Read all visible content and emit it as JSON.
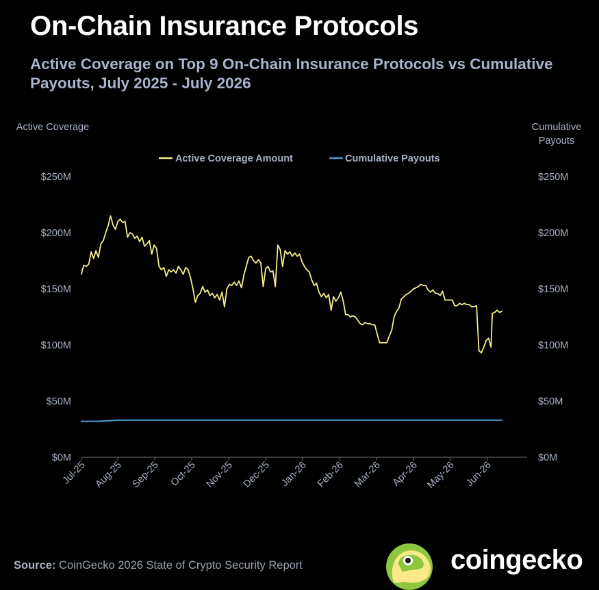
{
  "title": "On-Chain Insurance Protocols",
  "subtitle": "Active Coverage on Top 9 On-Chain Insurance Protocols vs Cumulative Payouts, July 2025 - July 2026",
  "colors": {
    "background": "#000000",
    "coverage": "#f4ef8c",
    "payouts": "#4b9bd5",
    "text_muted": "#a7b1c3"
  },
  "chart_data": {
    "type": "line",
    "title": "On-Chain Insurance Protocols",
    "subtitle": "Active Coverage on Top 9 On-Chain Insurance Protocols vs Cumulative Payouts, July 2025 - July 2026",
    "ylabel": "Active Coverage",
    "y2label": "Cumulative Payouts",
    "ylim": [
      0,
      250
    ],
    "y2lim": [
      0,
      250
    ],
    "yticks": [
      "$0M",
      "$50M",
      "$100M",
      "$150M",
      "$200M",
      "$250M"
    ],
    "y2ticks": [
      "$0M",
      "$50M",
      "$100M",
      "$150M",
      "$200M",
      "$250M"
    ],
    "xticks": [
      "Jul-25",
      "Aug-25",
      "Sep-25",
      "Oct-25",
      "Nov-25",
      "Dec-25",
      "Jan-26",
      "Feb-26",
      "Mar-26",
      "Apr-26",
      "May-26",
      "Jun-26"
    ],
    "grid": false,
    "legend": "top-center",
    "units": "USD millions",
    "series": [
      {
        "name": "Active Coverage Amount",
        "color": "#f4ef8c",
        "points": [
          [
            "2025-07-01",
            163
          ],
          [
            "2025-07-02",
            168
          ],
          [
            "2025-07-03",
            171
          ],
          [
            "2025-07-05",
            170
          ],
          [
            "2025-07-07",
            172
          ],
          [
            "2025-07-09",
            183
          ],
          [
            "2025-07-11",
            177
          ],
          [
            "2025-07-13",
            184
          ],
          [
            "2025-07-15",
            178
          ],
          [
            "2025-07-17",
            190
          ],
          [
            "2025-07-19",
            193
          ],
          [
            "2025-07-21",
            200
          ],
          [
            "2025-07-23",
            206
          ],
          [
            "2025-07-25",
            215
          ],
          [
            "2025-07-27",
            207
          ],
          [
            "2025-07-29",
            203
          ],
          [
            "2025-07-31",
            210
          ],
          [
            "2025-08-02",
            212
          ],
          [
            "2025-08-04",
            209
          ],
          [
            "2025-08-06",
            210
          ],
          [
            "2025-08-08",
            196
          ],
          [
            "2025-08-10",
            200
          ],
          [
            "2025-08-12",
            199
          ],
          [
            "2025-08-14",
            195
          ],
          [
            "2025-08-16",
            197
          ],
          [
            "2025-08-18",
            192
          ],
          [
            "2025-08-20",
            196
          ],
          [
            "2025-08-22",
            188
          ],
          [
            "2025-08-24",
            190
          ],
          [
            "2025-08-26",
            193
          ],
          [
            "2025-08-28",
            181
          ],
          [
            "2025-08-30",
            189
          ],
          [
            "2025-09-01",
            186
          ],
          [
            "2025-09-03",
            170
          ],
          [
            "2025-09-05",
            167
          ],
          [
            "2025-09-07",
            169
          ],
          [
            "2025-09-09",
            161
          ],
          [
            "2025-09-11",
            167
          ],
          [
            "2025-09-13",
            165
          ],
          [
            "2025-09-15",
            167
          ],
          [
            "2025-09-17",
            164
          ],
          [
            "2025-09-19",
            170
          ],
          [
            "2025-09-21",
            167
          ],
          [
            "2025-09-23",
            163
          ],
          [
            "2025-09-25",
            169
          ],
          [
            "2025-09-27",
            167
          ],
          [
            "2025-09-29",
            160
          ],
          [
            "2025-10-01",
            150
          ],
          [
            "2025-10-03",
            138
          ],
          [
            "2025-10-05",
            144
          ],
          [
            "2025-10-07",
            146
          ],
          [
            "2025-10-09",
            152
          ],
          [
            "2025-10-11",
            147
          ],
          [
            "2025-10-13",
            149
          ],
          [
            "2025-10-15",
            144
          ],
          [
            "2025-10-17",
            146
          ],
          [
            "2025-10-19",
            142
          ],
          [
            "2025-10-21",
            145
          ],
          [
            "2025-10-23",
            140
          ],
          [
            "2025-10-25",
            147
          ],
          [
            "2025-10-27",
            134
          ],
          [
            "2025-10-29",
            150
          ],
          [
            "2025-10-31",
            154
          ],
          [
            "2025-11-02",
            153
          ],
          [
            "2025-11-04",
            156
          ],
          [
            "2025-11-06",
            153
          ],
          [
            "2025-11-08",
            157
          ],
          [
            "2025-11-10",
            151
          ],
          [
            "2025-11-12",
            162
          ],
          [
            "2025-11-14",
            170
          ],
          [
            "2025-11-16",
            178
          ],
          [
            "2025-11-18",
            179
          ],
          [
            "2025-11-20",
            175
          ],
          [
            "2025-11-22",
            173
          ],
          [
            "2025-11-24",
            176
          ],
          [
            "2025-11-26",
            173
          ],
          [
            "2025-11-28",
            152
          ],
          [
            "2025-11-30",
            168
          ],
          [
            "2025-12-02",
            170
          ],
          [
            "2025-12-04",
            165
          ],
          [
            "2025-12-06",
            166
          ],
          [
            "2025-12-08",
            152
          ],
          [
            "2025-12-10",
            189
          ],
          [
            "2025-12-12",
            185
          ],
          [
            "2025-12-14",
            170
          ],
          [
            "2025-12-16",
            184
          ],
          [
            "2025-12-18",
            181
          ],
          [
            "2025-12-20",
            183
          ],
          [
            "2025-12-22",
            179
          ],
          [
            "2025-12-24",
            182
          ],
          [
            "2025-12-26",
            179
          ],
          [
            "2025-12-28",
            181
          ],
          [
            "2025-12-30",
            174
          ],
          [
            "2026-01-01",
            170
          ],
          [
            "2026-01-03",
            167
          ],
          [
            "2026-01-05",
            165
          ],
          [
            "2026-01-07",
            158
          ],
          [
            "2026-01-09",
            153
          ],
          [
            "2026-01-11",
            155
          ],
          [
            "2026-01-13",
            147
          ],
          [
            "2026-01-15",
            143
          ],
          [
            "2026-01-17",
            146
          ],
          [
            "2026-01-19",
            142
          ],
          [
            "2026-01-21",
            145
          ],
          [
            "2026-01-23",
            131
          ],
          [
            "2026-01-25",
            143
          ],
          [
            "2026-01-27",
            139
          ],
          [
            "2026-01-29",
            142
          ],
          [
            "2026-01-31",
            147
          ],
          [
            "2026-02-02",
            139
          ],
          [
            "2026-02-04",
            127
          ],
          [
            "2026-02-06",
            127
          ],
          [
            "2026-02-08",
            125
          ],
          [
            "2026-02-10",
            126
          ],
          [
            "2026-02-12",
            125
          ],
          [
            "2026-02-14",
            122
          ],
          [
            "2026-02-16",
            119
          ],
          [
            "2026-02-18",
            118
          ],
          [
            "2026-02-20",
            120
          ],
          [
            "2026-02-22",
            119
          ],
          [
            "2026-02-24",
            119
          ],
          [
            "2026-02-26",
            118
          ],
          [
            "2026-02-28",
            118
          ],
          [
            "2026-03-02",
            110
          ],
          [
            "2026-03-04",
            102
          ],
          [
            "2026-03-06",
            102
          ],
          [
            "2026-03-08",
            102
          ],
          [
            "2026-03-10",
            102
          ],
          [
            "2026-03-12",
            108
          ],
          [
            "2026-03-14",
            113
          ],
          [
            "2026-03-16",
            125
          ],
          [
            "2026-03-18",
            130
          ],
          [
            "2026-03-20",
            133
          ],
          [
            "2026-03-22",
            141
          ],
          [
            "2026-03-24",
            143
          ],
          [
            "2026-03-26",
            145
          ],
          [
            "2026-03-28",
            146
          ],
          [
            "2026-03-30",
            148
          ],
          [
            "2026-04-01",
            150
          ],
          [
            "2026-04-03",
            151
          ],
          [
            "2026-04-05",
            152
          ],
          [
            "2026-04-07",
            154
          ],
          [
            "2026-04-09",
            153
          ],
          [
            "2026-04-11",
            153
          ],
          [
            "2026-04-13",
            149
          ],
          [
            "2026-04-15",
            147
          ],
          [
            "2026-04-17",
            149
          ],
          [
            "2026-04-19",
            146
          ],
          [
            "2026-04-21",
            146
          ],
          [
            "2026-04-23",
            144
          ],
          [
            "2026-04-25",
            148
          ],
          [
            "2026-04-27",
            140
          ],
          [
            "2026-04-29",
            140
          ],
          [
            "2026-05-01",
            140
          ],
          [
            "2026-05-03",
            140
          ],
          [
            "2026-05-05",
            135
          ],
          [
            "2026-05-07",
            135
          ],
          [
            "2026-05-09",
            137
          ],
          [
            "2026-05-11",
            136
          ],
          [
            "2026-05-13",
            137
          ],
          [
            "2026-05-15",
            136
          ],
          [
            "2026-05-17",
            136
          ],
          [
            "2026-05-19",
            134
          ],
          [
            "2026-05-21",
            134
          ],
          [
            "2026-05-23",
            135
          ],
          [
            "2026-05-25",
            95
          ],
          [
            "2026-05-27",
            93
          ],
          [
            "2026-05-29",
            98
          ],
          [
            "2026-05-31",
            104
          ],
          [
            "2026-06-02",
            106
          ],
          [
            "2026-06-04",
            98
          ],
          [
            "2026-06-05",
            128
          ],
          [
            "2026-06-07",
            129
          ],
          [
            "2026-06-09",
            131
          ],
          [
            "2026-06-11",
            129
          ],
          [
            "2026-06-13",
            130
          ]
        ]
      },
      {
        "name": "Cumulative Payouts",
        "color": "#4b9bd5",
        "points": [
          [
            "2025-07-01",
            32
          ],
          [
            "2025-07-15",
            32
          ],
          [
            "2025-08-01",
            33
          ],
          [
            "2026-06-13",
            33
          ]
        ]
      }
    ]
  },
  "source": {
    "label": "Source:",
    "text": "CoinGecko 2026 State of Crypto Security Report"
  },
  "brand": {
    "name": "coingecko"
  }
}
